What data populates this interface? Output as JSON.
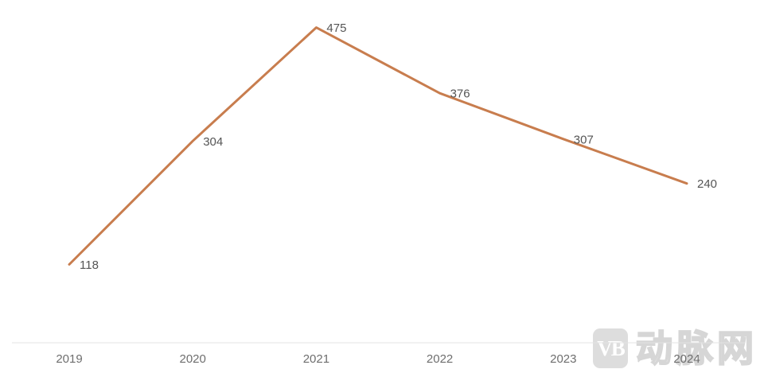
{
  "chart_data": {
    "type": "line",
    "categories": [
      "2019",
      "2020",
      "2021",
      "2022",
      "2023",
      "2024"
    ],
    "values": [
      118,
      304,
      475,
      376,
      307,
      240
    ],
    "title": "",
    "xlabel": "",
    "ylabel": "",
    "ylim": [
      0,
      500
    ],
    "grid": false,
    "legend_position": "none",
    "data_labels_visible": true,
    "line_color": "#c87d4e",
    "data_label_color": "#555555",
    "axis_label_color": "#6e6e6e",
    "axis_line_color": "#e3e3e3"
  },
  "watermark": {
    "logo_text": "VB",
    "brand_text": "动脉网"
  }
}
